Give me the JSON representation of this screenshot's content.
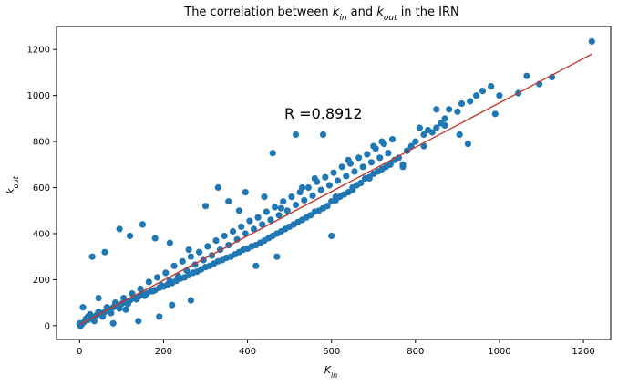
{
  "chart_data": {
    "type": "scatter",
    "title_parts": [
      "The correlation between ",
      "k",
      "in",
      " and ",
      "k",
      "out",
      " in the IRN"
    ],
    "xlabel": {
      "base": "K",
      "sub": "in"
    },
    "ylabel": {
      "base": "k",
      "sub": "out"
    },
    "annotation": "R =0.8912",
    "xlim": [
      -55,
      1265
    ],
    "ylim": [
      -60,
      1300
    ],
    "x_ticks": [
      0,
      200,
      400,
      600,
      800,
      1000,
      1200
    ],
    "y_ticks": [
      0,
      200,
      400,
      600,
      800,
      1000,
      1200
    ],
    "x_tick_labels": [
      "0",
      "200",
      "400",
      "600",
      "800",
      "1000",
      "1200"
    ],
    "y_tick_labels": [
      "0",
      "200",
      "400",
      "600",
      "800",
      "1000",
      "1200"
    ],
    "grid": false,
    "point_color": "#1f77b4",
    "fit_line": {
      "color": "#c0392b",
      "x": [
        0,
        1220
      ],
      "y": [
        5,
        1180
      ]
    },
    "points": {
      "x": [
        1220,
        1065,
        1125,
        1095,
        1045,
        1000,
        980,
        960,
        945,
        930,
        910,
        900,
        880,
        870,
        860,
        850,
        840,
        830,
        820,
        800,
        790,
        780,
        770,
        760,
        750,
        740,
        730,
        720,
        710,
        700,
        690,
        680,
        670,
        660,
        650,
        640,
        630,
        620,
        610,
        600,
        590,
        580,
        570,
        560,
        550,
        540,
        530,
        520,
        510,
        500,
        490,
        480,
        470,
        460,
        450,
        440,
        430,
        420,
        410,
        400,
        390,
        380,
        370,
        360,
        350,
        340,
        330,
        320,
        310,
        300,
        290,
        280,
        270,
        260,
        250,
        240,
        230,
        220,
        210,
        200,
        190,
        180,
        170,
        160,
        150,
        140,
        130,
        120,
        110,
        100,
        90,
        80,
        70,
        60,
        50,
        40,
        30,
        20,
        10,
        5,
        2,
        0,
        15,
        25,
        35,
        45,
        55,
        65,
        75,
        85,
        95,
        105,
        115,
        125,
        135,
        145,
        155,
        165,
        175,
        185,
        195,
        205,
        215,
        225,
        235,
        245,
        255,
        265,
        275,
        285,
        295,
        305,
        315,
        325,
        335,
        345,
        355,
        365,
        375,
        385,
        395,
        405,
        415,
        425,
        435,
        445,
        455,
        465,
        475,
        485,
        495,
        505,
        515,
        525,
        535,
        545,
        555,
        565,
        575,
        585,
        595,
        605,
        615,
        625,
        635,
        645,
        655,
        665,
        675,
        685,
        695,
        705,
        715,
        725,
        735,
        745,
        580,
        515,
        460,
        395,
        355,
        300,
        260,
        215,
        180,
        150,
        120,
        95,
        60,
        30,
        640,
        720,
        850,
        905,
        925,
        990,
        870,
        780,
        810,
        700,
        600,
        470,
        420,
        265,
        220,
        190,
        140,
        110,
        80,
        45,
        20,
        8,
        330,
        380,
        440,
        480,
        530,
        560,
        610,
        650,
        690,
        740,
        770,
        820
      ],
      "y": [
        1235,
        1085,
        1080,
        1050,
        1010,
        1000,
        1040,
        1020,
        1000,
        975,
        965,
        930,
        940,
        900,
        880,
        860,
        840,
        850,
        830,
        800,
        780,
        760,
        700,
        730,
        720,
        705,
        690,
        680,
        670,
        660,
        645,
        640,
        620,
        610,
        600,
        580,
        570,
        560,
        545,
        540,
        520,
        510,
        500,
        495,
        480,
        470,
        460,
        450,
        440,
        430,
        420,
        410,
        400,
        390,
        380,
        370,
        360,
        350,
        345,
        335,
        330,
        320,
        310,
        300,
        295,
        285,
        280,
        270,
        260,
        255,
        245,
        235,
        230,
        220,
        210,
        205,
        195,
        185,
        180,
        170,
        165,
        155,
        150,
        140,
        135,
        125,
        120,
        110,
        105,
        95,
        85,
        80,
        70,
        60,
        55,
        45,
        35,
        25,
        15,
        5,
        0,
        10,
        30,
        50,
        20,
        60,
        40,
        80,
        55,
        100,
        75,
        120,
        95,
        140,
        115,
        160,
        130,
        190,
        150,
        210,
        175,
        230,
        195,
        260,
        215,
        280,
        240,
        300,
        265,
        320,
        285,
        345,
        305,
        370,
        330,
        390,
        350,
        410,
        375,
        430,
        400,
        455,
        420,
        470,
        440,
        495,
        460,
        515,
        480,
        540,
        500,
        560,
        525,
        580,
        545,
        600,
        565,
        625,
        590,
        645,
        610,
        665,
        630,
        690,
        650,
        705,
        670,
        730,
        690,
        745,
        710,
        770,
        730,
        790,
        750,
        810,
        830,
        830,
        750,
        580,
        540,
        520,
        330,
        360,
        380,
        440,
        390,
        420,
        320,
        300,
        720,
        800,
        940,
        830,
        790,
        920,
        870,
        760,
        860,
        780,
        390,
        300,
        260,
        110,
        90,
        40,
        20,
        70,
        10,
        120,
        40,
        80,
        600,
        500,
        560,
        510,
        600,
        640,
        560,
        590,
        640,
        700,
        690,
        780
      ]
    }
  }
}
